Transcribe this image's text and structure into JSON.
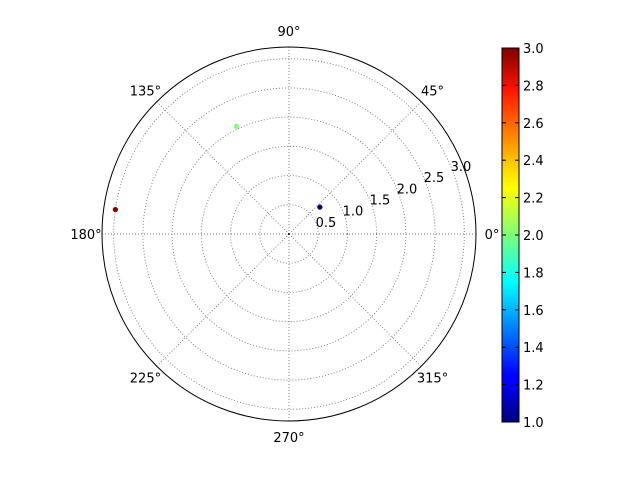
{
  "chart_data": {
    "type": "scatter",
    "coordinate_system": "polar",
    "angle_unit": "degrees",
    "angle_ticks": [
      "0°",
      "45°",
      "90°",
      "135°",
      "180°",
      "225°",
      "270°",
      "315°"
    ],
    "angle_tick_values": [
      0,
      45,
      90,
      135,
      180,
      225,
      270,
      315
    ],
    "radial_ticks": [
      "0.5",
      "1.0",
      "1.5",
      "2.0",
      "2.5",
      "3.0"
    ],
    "radial_tick_values": [
      0.5,
      1.0,
      1.5,
      2.0,
      2.5,
      3.0
    ],
    "rlim": [
      0,
      3.2
    ],
    "grid": true,
    "points": [
      {
        "theta": 41,
        "r": 0.7,
        "c": 1.0
      },
      {
        "theta": 116,
        "r": 2.05,
        "c": 2.0
      },
      {
        "theta": 172,
        "r": 3.0,
        "c": 3.0
      }
    ],
    "colorbar": {
      "colormap": "jet",
      "range": [
        1.0,
        3.0
      ],
      "ticks": [
        "1.0",
        "1.2",
        "1.4",
        "1.6",
        "1.8",
        "2.0",
        "2.2",
        "2.4",
        "2.6",
        "2.8",
        "3.0"
      ],
      "tick_values": [
        1.0,
        1.2,
        1.4,
        1.6,
        1.8,
        2.0,
        2.2,
        2.4,
        2.6,
        2.8,
        3.0
      ],
      "placement": "right"
    }
  }
}
